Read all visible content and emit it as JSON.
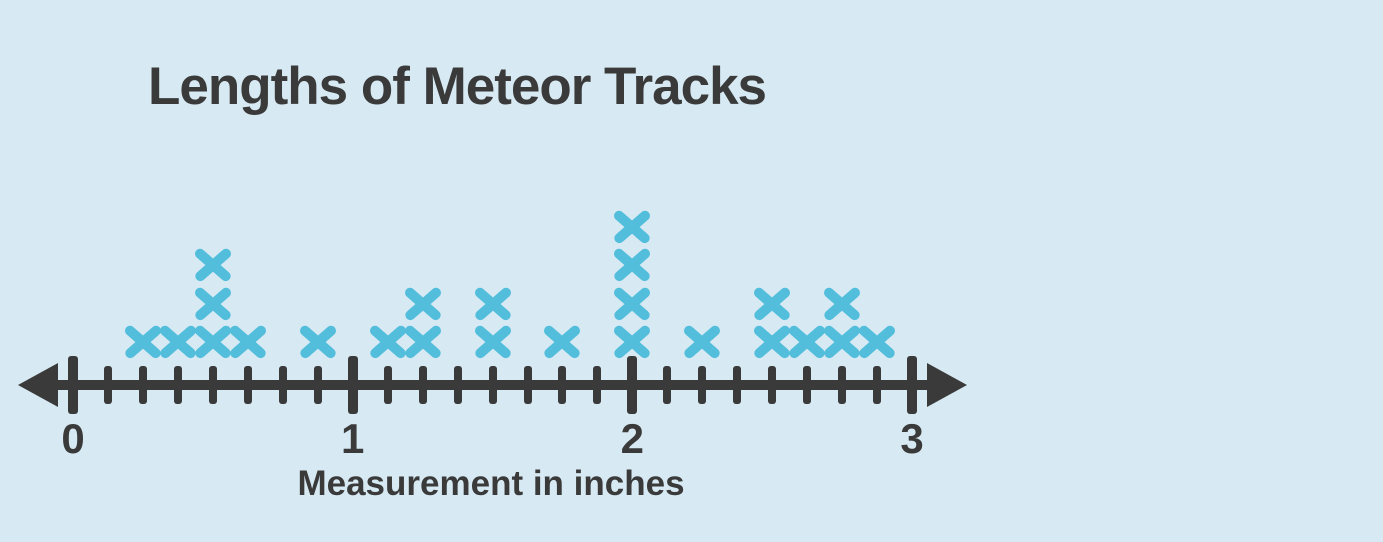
{
  "chart_data": {
    "type": "dot_plot",
    "title": "Lengths of Meteor Tracks",
    "xlabel": "Measurement in inches",
    "marker_symbol": "X",
    "x_axis": {
      "min": 0,
      "max": 3,
      "minor_tick_interval": 0.125,
      "labeled_ticks": [
        0,
        1,
        2,
        3
      ],
      "arrows": "both-ends"
    },
    "points": [
      {
        "value": 0.25,
        "count": 1
      },
      {
        "value": 0.375,
        "count": 1
      },
      {
        "value": 0.5,
        "count": 3
      },
      {
        "value": 0.625,
        "count": 1
      },
      {
        "value": 0.875,
        "count": 1
      },
      {
        "value": 1.125,
        "count": 1
      },
      {
        "value": 1.25,
        "count": 2
      },
      {
        "value": 1.5,
        "count": 2
      },
      {
        "value": 1.75,
        "count": 1
      },
      {
        "value": 2,
        "count": 4
      },
      {
        "value": 2.25,
        "count": 1
      },
      {
        "value": 2.5,
        "count": 2
      },
      {
        "value": 2.625,
        "count": 1
      },
      {
        "value": 2.75,
        "count": 2
      },
      {
        "value": 2.875,
        "count": 1
      }
    ],
    "total_marks": 24
  },
  "colors": {
    "background": "#D7E9F2",
    "axis": "#3A3A3A",
    "text": "#3A3A3A",
    "marker": "#52BEDC"
  }
}
